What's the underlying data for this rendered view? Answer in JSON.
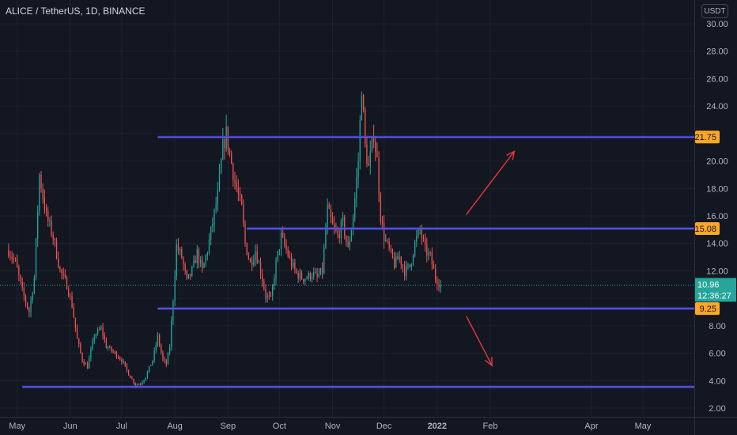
{
  "header": {
    "title": "ALICE / TetherUS, 1D, BINANCE",
    "currency": "USDT"
  },
  "chart_data": {
    "type": "candlestick",
    "ylim": [
      2.0,
      30.0
    ],
    "y_ticks": [
      {
        "value": 30,
        "label": "30.00"
      },
      {
        "value": 28,
        "label": "28.00"
      },
      {
        "value": 26,
        "label": "26.00"
      },
      {
        "value": 24,
        "label": "24.00"
      },
      {
        "value": 22,
        "label": "22.00"
      },
      {
        "value": 20,
        "label": "20.00"
      },
      {
        "value": 18,
        "label": "18.00"
      },
      {
        "value": 16,
        "label": "16.00"
      },
      {
        "value": 14,
        "label": "14.00"
      },
      {
        "value": 12,
        "label": "12.00"
      },
      {
        "value": 10,
        "label": "10.00"
      },
      {
        "value": 8,
        "label": "8.00"
      },
      {
        "value": 6,
        "label": "6.00"
      },
      {
        "value": 4,
        "label": "4.00"
      },
      {
        "value": 2,
        "label": "2.00"
      }
    ],
    "x_ticks": [
      {
        "label": "May",
        "day": 0
      },
      {
        "label": "Jun",
        "day": 31
      },
      {
        "label": "Jul",
        "day": 61
      },
      {
        "label": "Aug",
        "day": 92
      },
      {
        "label": "Sep",
        "day": 123
      },
      {
        "label": "Oct",
        "day": 153
      },
      {
        "label": "Nov",
        "day": 184
      },
      {
        "label": "Dec",
        "day": 214
      },
      {
        "label": "2022",
        "day": 245
      },
      {
        "label": "Feb",
        "day": 276
      },
      {
        "label": "Apr",
        "day": 335
      },
      {
        "label": "May",
        "day": 365
      }
    ],
    "x_domain_days": [
      -10,
      395
    ],
    "horizontal_levels": [
      {
        "value": 21.75,
        "label": "21.75",
        "from_day": 82,
        "color": "#3f3fd1",
        "label_color": "#ffa726"
      },
      {
        "value": 15.08,
        "label": "15.08",
        "from_day": 134,
        "color": "#3f3fd1",
        "label_color": "#ffa726"
      },
      {
        "value": 9.25,
        "label": "9.25",
        "from_day": 82,
        "color": "#3f3fd1",
        "label_color": "#ffa726"
      },
      {
        "value": 3.55,
        "label": "",
        "from_day": 3,
        "color": "#3f3fd1",
        "label_color": ""
      }
    ],
    "current_price": {
      "value": 10.96,
      "label": "10.96",
      "countdown": "12:36:27",
      "color": "#26a69a"
    },
    "arrows": [
      {
        "from_day": 262,
        "from_value": 16.1,
        "to_day": 290,
        "to_value": 20.7,
        "color": "#e53935"
      },
      {
        "from_day": 262,
        "from_value": 8.7,
        "to_day": 277,
        "to_value": 5.1,
        "color": "#e53935"
      }
    ],
    "anchors": [
      [
        -5,
        13.5
      ],
      [
        -1,
        12.6
      ],
      [
        3,
        10.5
      ],
      [
        7,
        9.0
      ],
      [
        10,
        11.5
      ],
      [
        13,
        19.0
      ],
      [
        17,
        16.0
      ],
      [
        21,
        14.5
      ],
      [
        25,
        12.0
      ],
      [
        29,
        11.0
      ],
      [
        32,
        9.5
      ],
      [
        35,
        7.0
      ],
      [
        38,
        5.5
      ],
      [
        41,
        5.0
      ],
      [
        45,
        7.3
      ],
      [
        49,
        7.8
      ],
      [
        52,
        6.5
      ],
      [
        57,
        6.0
      ],
      [
        61,
        5.5
      ],
      [
        65,
        4.5
      ],
      [
        69,
        3.7
      ],
      [
        72,
        3.8
      ],
      [
        75,
        4.3
      ],
      [
        79,
        5.5
      ],
      [
        82,
        7.2
      ],
      [
        85,
        5.5
      ],
      [
        87,
        5.2
      ],
      [
        89,
        6.5
      ],
      [
        91,
        10.0
      ],
      [
        93,
        13.8
      ],
      [
        96,
        13.0
      ],
      [
        99,
        11.2
      ],
      [
        102,
        12.0
      ],
      [
        105,
        13.3
      ],
      [
        108,
        12.0
      ],
      [
        111,
        13.5
      ],
      [
        114,
        15.5
      ],
      [
        117,
        17.5
      ],
      [
        120,
        21.0
      ],
      [
        122,
        22.0
      ],
      [
        124,
        20.5
      ],
      [
        127,
        18.5
      ],
      [
        131,
        16.5
      ],
      [
        133,
        14.0
      ],
      [
        136,
        12.5
      ],
      [
        139,
        13.5
      ],
      [
        142,
        12.0
      ],
      [
        145,
        10.2
      ],
      [
        148,
        9.9
      ],
      [
        151,
        12.5
      ],
      [
        154,
        14.5
      ],
      [
        157,
        13.5
      ],
      [
        160,
        12.5
      ],
      [
        163,
        11.8
      ],
      [
        166,
        11.5
      ],
      [
        169,
        11.5
      ],
      [
        172,
        11.8
      ],
      [
        175,
        11.5
      ],
      [
        178,
        12.0
      ],
      [
        181,
        16.5
      ],
      [
        184,
        15.2
      ],
      [
        187,
        14.5
      ],
      [
        190,
        15.5
      ],
      [
        193,
        13.5
      ],
      [
        196,
        16.0
      ],
      [
        199,
        20.0
      ],
      [
        201,
        25.5
      ],
      [
        203,
        21.0
      ],
      [
        205,
        19.5
      ],
      [
        208,
        22.0
      ],
      [
        210,
        20.0
      ],
      [
        212,
        16.0
      ],
      [
        214,
        14.5
      ],
      [
        217,
        13.5
      ],
      [
        220,
        12.5
      ],
      [
        223,
        13.0
      ],
      [
        226,
        12.0
      ],
      [
        229,
        12.3
      ],
      [
        232,
        14.0
      ],
      [
        235,
        15.0
      ],
      [
        238,
        13.5
      ],
      [
        241,
        13.0
      ],
      [
        244,
        11.5
      ],
      [
        247,
        10.96
      ]
    ]
  }
}
